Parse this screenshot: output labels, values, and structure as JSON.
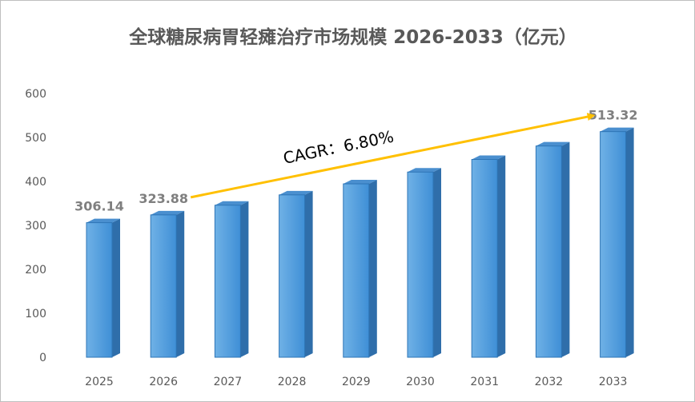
{
  "chart_data": {
    "type": "bar",
    "title": "全球糖尿病胃轻瘫治疗市场规模 2026-2033（亿元）",
    "xlabel": "",
    "ylabel": "",
    "categories": [
      "2025",
      "2026",
      "2027",
      "2028",
      "2029",
      "2030",
      "2031",
      "2032",
      "2033"
    ],
    "values": [
      306.14,
      323.88,
      345.9,
      369.4,
      394.5,
      421.3,
      450.0,
      480.6,
      513.32
    ],
    "value_labels": [
      "306.14",
      "323.88",
      "",
      "",
      "",
      "",
      "",
      "",
      "513.32"
    ],
    "ylim": [
      0,
      600
    ],
    "yticks": [
      "0",
      "100",
      "200",
      "300",
      "400",
      "500",
      "600"
    ],
    "grid": false,
    "legend": "none",
    "style": "3d-column",
    "annotation": {
      "text": "CAGR：6.80%",
      "kind": "arrow",
      "from_category": "2026",
      "to_category": "2033"
    },
    "colors": {
      "bar_front_top": "#6fb1e6",
      "bar_front_bottom": "#3f8fd6",
      "bar_side": "#2f6eaa",
      "bar_top": "#4a8fcf",
      "bar_edge": "#2e75b6",
      "arrow": "#ffc000",
      "title": "#595959",
      "ticks": "#595959",
      "data_labels": "#7f7f7f"
    }
  }
}
